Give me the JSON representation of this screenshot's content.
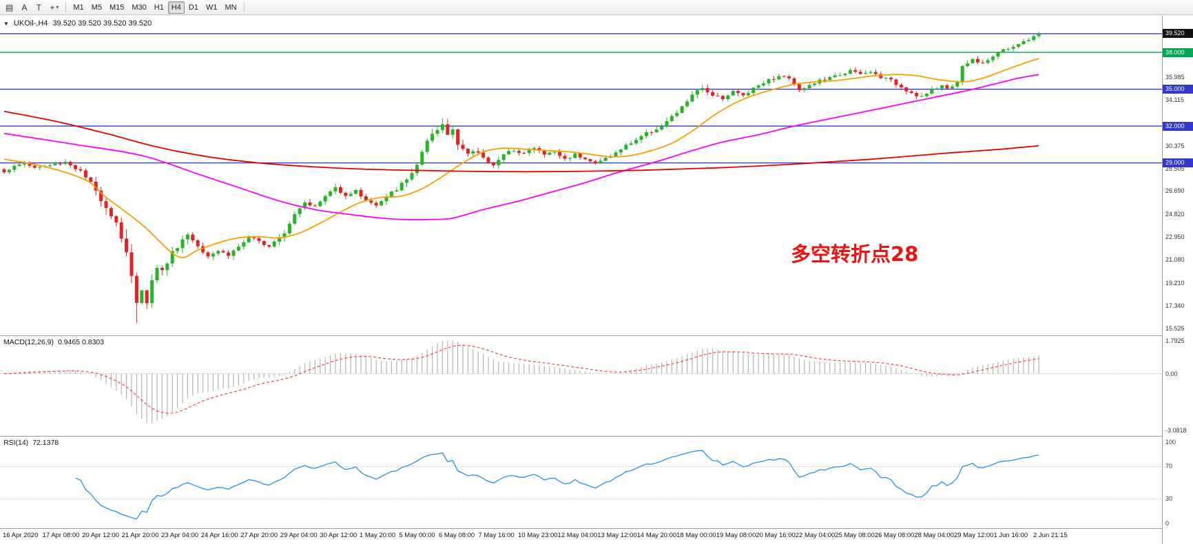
{
  "toolbar": {
    "icons": [
      {
        "name": "chart-grid-icon",
        "glyph": "▤"
      },
      {
        "name": "letter-a-icon",
        "glyph": "A"
      },
      {
        "name": "text-tool-icon",
        "glyph": "T"
      },
      {
        "name": "crosshair-icon",
        "glyph": "+"
      },
      {
        "name": "dropdown-arrow-icon",
        "glyph": "▾"
      }
    ],
    "timeframes": [
      "M1",
      "M5",
      "M15",
      "M30",
      "H1",
      "H4",
      "D1",
      "W1",
      "MN"
    ],
    "active_timeframe": "H4"
  },
  "chart_data": {
    "type": "candlestick",
    "title": "UKOil-,H4",
    "ohlc_readout": "39.520 39.520 39.520 39.520",
    "dropdown_glyph": "▼",
    "annotation": {
      "text": "多空转折点28",
      "color": "#ee1111"
    },
    "price_ticks": [
      "35.985",
      "34.115",
      "30.375",
      "28.505",
      "26.690",
      "24.820",
      "22.950",
      "21.080",
      "19.210",
      "17.340",
      "15.525"
    ],
    "hlines": [
      {
        "price": 39.52,
        "color": "#3338cc",
        "badge": "39.520",
        "badge_bg": "#111111"
      },
      {
        "price": 38.0,
        "color": "#00a850",
        "badge": "38.000",
        "badge_bg": "#00a850"
      },
      {
        "price": 35.0,
        "color": "#3338cc",
        "badge": "35.000",
        "badge_bg": "#3338cc"
      },
      {
        "price": 32.0,
        "color": "#3338cc",
        "badge": "32.000",
        "badge_bg": "#3338cc"
      },
      {
        "price": 29.0,
        "color": "#3338cc",
        "badge": "29.000",
        "badge_bg": "#3338cc"
      }
    ],
    "candles": {
      "count": 204,
      "seed": 1337,
      "up_color": "#28b428",
      "down_color": "#e32222",
      "close_anchors": [
        [
          0,
          28.3
        ],
        [
          2,
          28.7
        ],
        [
          4,
          29.0
        ],
        [
          6,
          28.6
        ],
        [
          9,
          28.8
        ],
        [
          12,
          29.1
        ],
        [
          15,
          28.3
        ],
        [
          17,
          27.3
        ],
        [
          20,
          25.5
        ],
        [
          22,
          24.2
        ],
        [
          24,
          21.8
        ],
        [
          25,
          19.6
        ],
        [
          26,
          17.4
        ],
        [
          27,
          18.9
        ],
        [
          28,
          17.9
        ],
        [
          29,
          19.3
        ],
        [
          30,
          20.7
        ],
        [
          31,
          20.1
        ],
        [
          32,
          21.0
        ],
        [
          34,
          22.3
        ],
        [
          36,
          23.2
        ],
        [
          38,
          22.3
        ],
        [
          40,
          21.5
        ],
        [
          42,
          21.9
        ],
        [
          44,
          21.5
        ],
        [
          46,
          22.2
        ],
        [
          48,
          22.9
        ],
        [
          50,
          22.6
        ],
        [
          52,
          22.3
        ],
        [
          55,
          23.4
        ],
        [
          57,
          24.9
        ],
        [
          59,
          25.9
        ],
        [
          61,
          25.4
        ],
        [
          63,
          26.3
        ],
        [
          65,
          27.0
        ],
        [
          67,
          26.4
        ],
        [
          69,
          26.7
        ],
        [
          71,
          26.0
        ],
        [
          73,
          25.5
        ],
        [
          75,
          26.2
        ],
        [
          77,
          26.9
        ],
        [
          79,
          27.6
        ],
        [
          81,
          28.9
        ],
        [
          83,
          30.6
        ],
        [
          85,
          31.6
        ],
        [
          86,
          32.1
        ],
        [
          87,
          31.3
        ],
        [
          88,
          31.8
        ],
        [
          89,
          30.7
        ],
        [
          91,
          29.7
        ],
        [
          93,
          29.9
        ],
        [
          94,
          29.4
        ],
        [
          96,
          28.9
        ],
        [
          98,
          29.6
        ],
        [
          100,
          30.1
        ],
        [
          102,
          29.8
        ],
        [
          104,
          30.2
        ],
        [
          106,
          29.7
        ],
        [
          108,
          29.9
        ],
        [
          110,
          29.3
        ],
        [
          112,
          29.7
        ],
        [
          114,
          29.4
        ],
        [
          116,
          28.9
        ],
        [
          118,
          29.4
        ],
        [
          120,
          29.8
        ],
        [
          122,
          30.4
        ],
        [
          124,
          30.9
        ],
        [
          125,
          31.2
        ],
        [
          127,
          31.6
        ],
        [
          129,
          32.0
        ],
        [
          131,
          32.7
        ],
        [
          133,
          33.5
        ],
        [
          135,
          34.6
        ],
        [
          137,
          35.0
        ],
        [
          139,
          34.6
        ],
        [
          141,
          34.3
        ],
        [
          143,
          34.8
        ],
        [
          145,
          34.5
        ],
        [
          147,
          35.1
        ],
        [
          149,
          35.6
        ],
        [
          151,
          35.9
        ],
        [
          153,
          36.1
        ],
        [
          155,
          35.5
        ],
        [
          156,
          35.0
        ],
        [
          158,
          35.3
        ],
        [
          160,
          35.7
        ],
        [
          162,
          35.9
        ],
        [
          164,
          36.2
        ],
        [
          166,
          36.5
        ],
        [
          168,
          36.2
        ],
        [
          170,
          36.4
        ],
        [
          172,
          36.0
        ],
        [
          174,
          35.7
        ],
        [
          176,
          35.2
        ],
        [
          178,
          34.7
        ],
        [
          180,
          34.4
        ],
        [
          182,
          34.9
        ],
        [
          184,
          35.3
        ],
        [
          186,
          35.1
        ],
        [
          187,
          35.7
        ],
        [
          188,
          36.9
        ],
        [
          190,
          37.4
        ],
        [
          192,
          37.2
        ],
        [
          194,
          37.7
        ],
        [
          195,
          38.0
        ],
        [
          197,
          38.3
        ],
        [
          199,
          38.7
        ],
        [
          201,
          39.0
        ],
        [
          203,
          39.52
        ]
      ],
      "vol_anchors": [
        [
          0,
          0.35
        ],
        [
          14,
          0.45
        ],
        [
          18,
          0.8
        ],
        [
          22,
          1.3
        ],
        [
          26,
          1.7
        ],
        [
          30,
          1.4
        ],
        [
          34,
          0.9
        ],
        [
          40,
          0.6
        ],
        [
          50,
          0.5
        ],
        [
          56,
          0.7
        ],
        [
          62,
          0.55
        ],
        [
          70,
          0.5
        ],
        [
          79,
          0.7
        ],
        [
          83,
          1.1
        ],
        [
          88,
          0.9
        ],
        [
          94,
          0.6
        ],
        [
          105,
          0.45
        ],
        [
          115,
          0.45
        ],
        [
          126,
          0.5
        ],
        [
          134,
          0.6
        ],
        [
          142,
          0.5
        ],
        [
          155,
          0.45
        ],
        [
          170,
          0.4
        ],
        [
          180,
          0.5
        ],
        [
          187,
          0.6
        ],
        [
          194,
          0.45
        ],
        [
          203,
          0.3
        ]
      ],
      "low_overrides": [
        [
          26,
          15.98
        ]
      ],
      "high_overrides": [
        [
          86,
          32.62
        ]
      ]
    },
    "moving_averages": [
      {
        "name": "ma-fast-orange",
        "color": "#ff9d00",
        "anchors": [
          [
            0,
            29.3
          ],
          [
            8,
            28.7
          ],
          [
            16,
            27.6
          ],
          [
            20,
            26.2
          ],
          [
            27,
            24.0
          ],
          [
            34,
            21.4
          ],
          [
            38,
            21.9
          ],
          [
            42,
            22.5
          ],
          [
            46,
            22.9
          ],
          [
            50,
            23.0
          ],
          [
            54,
            22.9
          ],
          [
            58,
            23.3
          ],
          [
            62,
            24.1
          ],
          [
            66,
            25.0
          ],
          [
            70,
            25.8
          ],
          [
            74,
            26.2
          ],
          [
            78,
            26.3
          ],
          [
            82,
            26.9
          ],
          [
            86,
            27.9
          ],
          [
            90,
            29.0
          ],
          [
            94,
            29.9
          ],
          [
            98,
            30.2
          ],
          [
            103,
            30.1
          ],
          [
            107,
            30.0
          ],
          [
            111,
            29.9
          ],
          [
            115,
            29.7
          ],
          [
            119,
            29.5
          ],
          [
            123,
            29.6
          ],
          [
            127,
            30.0
          ],
          [
            131,
            30.6
          ],
          [
            135,
            31.6
          ],
          [
            139,
            32.8
          ],
          [
            143,
            33.8
          ],
          [
            147,
            34.5
          ],
          [
            151,
            35.0
          ],
          [
            155,
            35.4
          ],
          [
            159,
            35.6
          ],
          [
            163,
            35.7
          ],
          [
            167,
            35.9
          ],
          [
            171,
            36.1
          ],
          [
            175,
            36.2
          ],
          [
            179,
            36.1
          ],
          [
            183,
            35.8
          ],
          [
            188,
            35.6
          ],
          [
            192,
            35.9
          ],
          [
            196,
            36.5
          ],
          [
            200,
            37.1
          ],
          [
            203,
            37.5
          ]
        ]
      },
      {
        "name": "ma-mid-magenta",
        "color": "#ff00ff",
        "anchors": [
          [
            0,
            31.4
          ],
          [
            14,
            30.5
          ],
          [
            27,
            29.6
          ],
          [
            38,
            28.1
          ],
          [
            46,
            27.0
          ],
          [
            54,
            25.9
          ],
          [
            61,
            25.2
          ],
          [
            67,
            24.85
          ],
          [
            73,
            24.55
          ],
          [
            78,
            24.4
          ],
          [
            84,
            24.4
          ],
          [
            88,
            24.5
          ],
          [
            94,
            25.2
          ],
          [
            101,
            25.9
          ],
          [
            108,
            26.7
          ],
          [
            114,
            27.4
          ],
          [
            121,
            28.3
          ],
          [
            128,
            29.1
          ],
          [
            135,
            30.0
          ],
          [
            141,
            30.7
          ],
          [
            148,
            31.3
          ],
          [
            155,
            32.0
          ],
          [
            162,
            32.6
          ],
          [
            168,
            33.1
          ],
          [
            175,
            33.7
          ],
          [
            182,
            34.3
          ],
          [
            189,
            34.9
          ],
          [
            195,
            35.5
          ],
          [
            199,
            35.9
          ],
          [
            203,
            36.2
          ]
        ]
      },
      {
        "name": "ma-slow-red",
        "color": "#e60000",
        "anchors": [
          [
            0,
            33.2
          ],
          [
            10,
            32.4
          ],
          [
            20,
            31.4
          ],
          [
            30,
            30.3
          ],
          [
            40,
            29.5
          ],
          [
            50,
            29.0
          ],
          [
            60,
            28.7
          ],
          [
            70,
            28.5
          ],
          [
            80,
            28.4
          ],
          [
            95,
            28.3
          ],
          [
            110,
            28.3
          ],
          [
            125,
            28.4
          ],
          [
            140,
            28.6
          ],
          [
            155,
            28.9
          ],
          [
            170,
            29.3
          ],
          [
            185,
            29.8
          ],
          [
            195,
            30.1
          ],
          [
            203,
            30.4
          ]
        ]
      }
    ],
    "macd": {
      "label": "MACD(12,26,9)",
      "values": "0.9465 0.8303",
      "fast": 12,
      "slow": 26,
      "signal": 9,
      "axis_labels": [
        "1.7925",
        "0.00",
        "-3.0818"
      ],
      "axis_top": 1.7925,
      "axis_bottom": -3.0818,
      "histogram_color": "#b4b4b4",
      "signal_color": "#ff3333"
    },
    "rsi": {
      "label": "RSI(14)",
      "value": "72.1378",
      "period": 14,
      "color": "#1e90ff",
      "levels": [
        70,
        30
      ],
      "axis_labels": [
        "100",
        "70",
        "30",
        "0"
      ]
    },
    "time_labels": [
      "16 Apr 2020",
      "17 Apr 08:00",
      "20 Apr 12:00",
      "21 Apr 20:00",
      "23 Apr 04:00",
      "24 Apr 16:00",
      "27 Apr 20:00",
      "29 Apr 04:00",
      "30 Apr 12:00",
      "1 May 20:00",
      "5 May 00:00",
      "6 May 08:00",
      "7 May 16:00",
      "10 May 23:00",
      "12 May 04:00",
      "13 May 12:00",
      "14 May 20:00",
      "18 May 00:00",
      "19 May 08:00",
      "20 May 16:00",
      "22 May 04:00",
      "25 May 08:00",
      "26 May 08:00",
      "28 May 04:00",
      "29 May 12:00",
      "1 Jun 16:00",
      "2 Jun 21:15"
    ]
  }
}
